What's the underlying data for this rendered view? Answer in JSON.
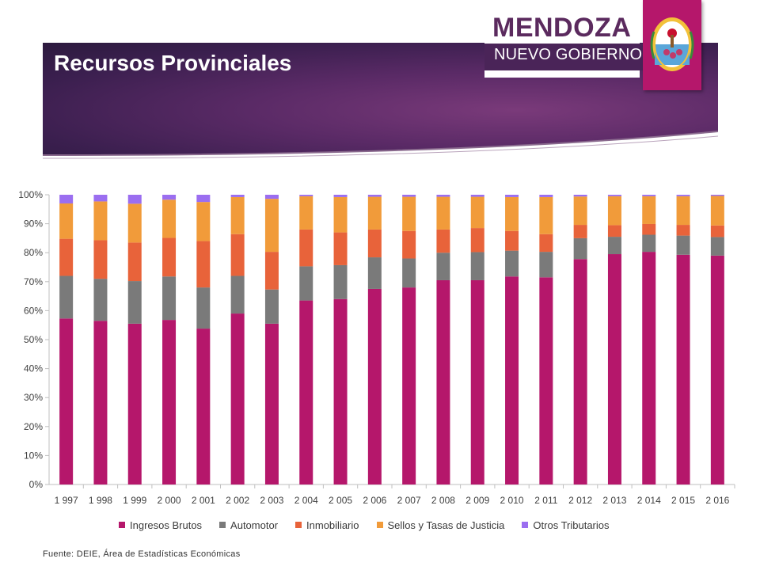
{
  "slide": {
    "title": "Recursos Provinciales",
    "source": "Fuente: DEIE, Área de Estadísticas Económicas"
  },
  "logo": {
    "main": "MENDOZA",
    "sub": "NUEVO GOBIERNO",
    "colors": {
      "brand": "#5b2a5e",
      "crest_bg": "#b5176b"
    }
  },
  "chart_data": {
    "type": "bar",
    "stacked": true,
    "categories": [
      "1 997",
      "1 998",
      "1 999",
      "2 000",
      "2 001",
      "2 002",
      "2 003",
      "2 004",
      "2 005",
      "2 006",
      "2 007",
      "2 008",
      "2 009",
      "2 010",
      "2 011",
      "2 012",
      "2 013",
      "2 014",
      "2 015",
      "2 016"
    ],
    "y_ticks": [
      "0%",
      "10%",
      "20%",
      "30%",
      "40%",
      "50%",
      "60%",
      "70%",
      "80%",
      "90%",
      "100%"
    ],
    "ylim": [
      0,
      100
    ],
    "grid": false,
    "legend_position": "bottom",
    "series": [
      {
        "name": "Ingresos Brutos",
        "color": "#b5176b",
        "values": [
          57.3,
          56.5,
          55.5,
          56.8,
          53.8,
          59.0,
          55.5,
          63.5,
          64.0,
          67.5,
          68.0,
          70.5,
          70.5,
          71.8,
          71.5,
          77.8,
          79.5,
          80.3,
          79.3,
          79.0
        ]
      },
      {
        "name": "Automotor",
        "color": "#7a7a7a",
        "values": [
          14.7,
          14.5,
          14.7,
          15.0,
          14.2,
          13.0,
          11.8,
          11.8,
          11.7,
          10.9,
          10.0,
          9.5,
          9.7,
          8.9,
          8.8,
          7.2,
          6.0,
          5.9,
          6.6,
          6.4
        ]
      },
      {
        "name": "Inmobiliario",
        "color": "#e8633a",
        "values": [
          12.8,
          13.3,
          13.3,
          13.3,
          16.0,
          14.4,
          13.0,
          12.7,
          11.3,
          9.6,
          9.5,
          8.0,
          8.3,
          6.8,
          6.1,
          4.6,
          4.0,
          3.7,
          3.7,
          4.0
        ]
      },
      {
        "name": "Sellos y Tasas de Justicia",
        "color": "#f19b3a",
        "values": [
          12.2,
          13.4,
          13.4,
          13.2,
          13.5,
          12.8,
          18.3,
          11.5,
          12.2,
          11.3,
          11.8,
          11.3,
          10.8,
          11.7,
          12.8,
          9.8,
          10.0,
          9.6,
          9.9,
          10.2
        ]
      },
      {
        "name": "Otros Tributarios",
        "color": "#9b6ef0",
        "values": [
          3.0,
          2.3,
          3.1,
          1.7,
          2.5,
          0.8,
          1.4,
          0.5,
          0.8,
          0.7,
          0.7,
          0.7,
          0.7,
          0.8,
          0.8,
          0.6,
          0.5,
          0.5,
          0.5,
          0.4
        ]
      }
    ]
  }
}
